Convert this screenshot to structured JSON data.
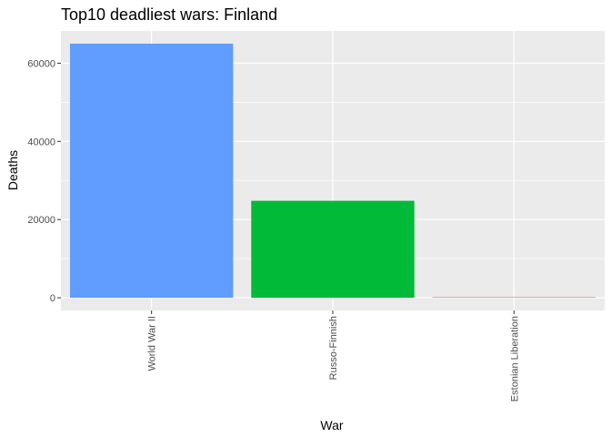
{
  "chart_data": {
    "type": "bar",
    "title": "Top10 deadliest wars:  Finland",
    "xlabel": "War",
    "ylabel": "Deaths",
    "categories": [
      "World War II",
      "Russo-Finnish",
      "Estonian Liberation"
    ],
    "values": [
      65000,
      24800,
      150
    ],
    "colors": [
      "#619CFF",
      "#00BA38",
      "#F8766D"
    ],
    "ylim": [
      -3250,
      68250
    ],
    "yticks": [
      0,
      20000,
      40000,
      60000
    ],
    "ytick_labels": [
      "0",
      "20000",
      "40000",
      "60000"
    ],
    "grid": true,
    "panel_background": "#EBEBEB",
    "gridline_color": "#FFFFFF"
  }
}
